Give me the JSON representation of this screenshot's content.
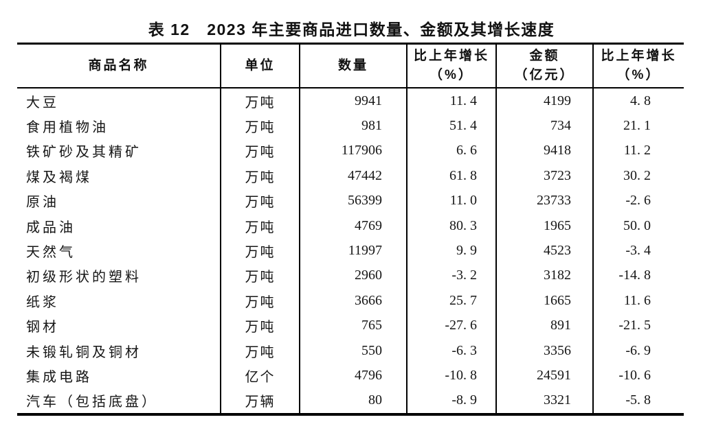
{
  "title": "表 12　2023 年主要商品进口数量、金额及其增长速度",
  "table": {
    "headers": [
      {
        "line1": "商品名称",
        "line2": ""
      },
      {
        "line1": "单位",
        "line2": ""
      },
      {
        "line1": "数量",
        "line2": ""
      },
      {
        "line1": "比上年增长",
        "line2": "（%）"
      },
      {
        "line1": "金额",
        "line2": "（亿元）"
      },
      {
        "line1": "比上年增长",
        "line2": "（%）"
      }
    ],
    "rows": [
      {
        "name": "大豆",
        "unit": "万吨",
        "quantity": "9941",
        "quantity_growth": "11. 4",
        "amount": "4199",
        "amount_growth": "4. 8"
      },
      {
        "name": "食用植物油",
        "unit": "万吨",
        "quantity": "981",
        "quantity_growth": "51. 4",
        "amount": "734",
        "amount_growth": "21. 1"
      },
      {
        "name": "铁矿砂及其精矿",
        "unit": "万吨",
        "quantity": "117906",
        "quantity_growth": "6. 6",
        "amount": "9418",
        "amount_growth": "11. 2"
      },
      {
        "name": "煤及褐煤",
        "unit": "万吨",
        "quantity": "47442",
        "quantity_growth": "61. 8",
        "amount": "3723",
        "amount_growth": "30. 2"
      },
      {
        "name": "原油",
        "unit": "万吨",
        "quantity": "56399",
        "quantity_growth": "11. 0",
        "amount": "23733",
        "amount_growth": "-2. 6"
      },
      {
        "name": "成品油",
        "unit": "万吨",
        "quantity": "4769",
        "quantity_growth": "80. 3",
        "amount": "1965",
        "amount_growth": "50. 0"
      },
      {
        "name": "天然气",
        "unit": "万吨",
        "quantity": "11997",
        "quantity_growth": "9. 9",
        "amount": "4523",
        "amount_growth": "-3. 4"
      },
      {
        "name": "初级形状的塑料",
        "unit": "万吨",
        "quantity": "2960",
        "quantity_growth": "-3. 2",
        "amount": "3182",
        "amount_growth": "-14. 8"
      },
      {
        "name": "纸浆",
        "unit": "万吨",
        "quantity": "3666",
        "quantity_growth": "25. 7",
        "amount": "1665",
        "amount_growth": "11. 6"
      },
      {
        "name": "钢材",
        "unit": "万吨",
        "quantity": "765",
        "quantity_growth": "-27. 6",
        "amount": "891",
        "amount_growth": "-21. 5"
      },
      {
        "name": "未锻轧铜及铜材",
        "unit": "万吨",
        "quantity": "550",
        "quantity_growth": "-6. 3",
        "amount": "3356",
        "amount_growth": "-6. 9"
      },
      {
        "name": "集成电路",
        "unit": "亿个",
        "quantity": "4796",
        "quantity_growth": "-10. 8",
        "amount": "24591",
        "amount_growth": "-10. 6"
      },
      {
        "name": "汽车（包括底盘）",
        "unit": "万辆",
        "quantity": "80",
        "quantity_growth": "-8. 9",
        "amount": "3321",
        "amount_growth": "-5. 8"
      }
    ]
  }
}
